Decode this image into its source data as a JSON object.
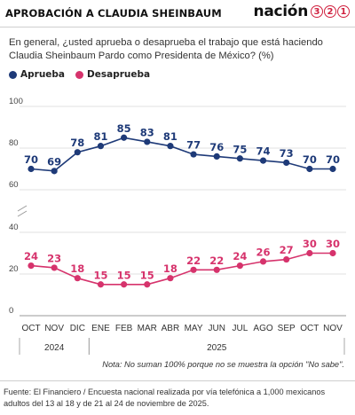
{
  "header": {
    "title": "APROBACIÓN A CLAUDIA SHEINBAUM",
    "brand_word": "nación",
    "brand_digits": [
      "3",
      "2",
      "1"
    ]
  },
  "question": "En general, ¿usted aprueba o desaprueba el trabajo que está haciendo Claudia Sheinbaum Pardo como Presidenta de México? (%)",
  "colors": {
    "aprueba": "#1e3a78",
    "desaprueba": "#d6336c"
  },
  "chart_data": {
    "type": "line",
    "categories": [
      "OCT",
      "NOV",
      "DIC",
      "ENE",
      "FEB",
      "MAR",
      "ABR",
      "MAY",
      "JUN",
      "JUL",
      "AGO",
      "SEP",
      "OCT",
      "NOV"
    ],
    "year_groups": [
      {
        "label": "2024",
        "start": 0,
        "end": 2
      },
      {
        "label": "2025",
        "start": 3,
        "end": 13
      }
    ],
    "series": [
      {
        "name": "Aprueba",
        "values": [
          70,
          69,
          78,
          81,
          85,
          83,
          81,
          77,
          76,
          75,
          74,
          73,
          70,
          70
        ]
      },
      {
        "name": "Desaprueba",
        "values": [
          24,
          23,
          18,
          15,
          15,
          15,
          18,
          22,
          22,
          24,
          26,
          27,
          30,
          30
        ]
      }
    ],
    "yticks": [
      0,
      20,
      40,
      60,
      80,
      100
    ],
    "ylim": [
      0,
      100
    ],
    "axis_break": true,
    "grid": true,
    "legend": "top-left"
  },
  "note": "Nota: No suman 100% porque no se muestra la opción \"No sabe\".",
  "source": "Fuente: El Financiero / Encuesta nacional realizada por vía telefónica a 1,000 mexicanos adultos del 13 al 18 y de 21 al 24 de noviembre de 2025."
}
